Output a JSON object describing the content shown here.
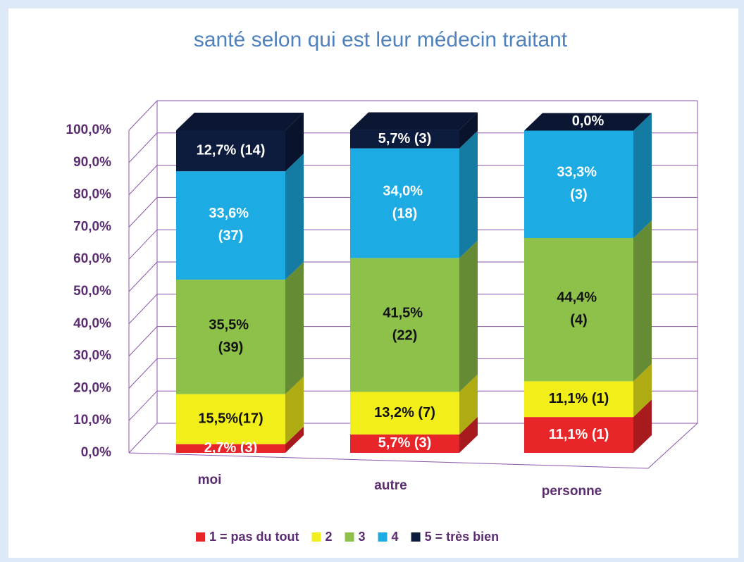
{
  "chart_data": {
    "type": "bar3d_stacked",
    "title": "santé selon qui est leur médecin traitant",
    "categories": [
      "moi",
      "autre",
      "personne"
    ],
    "ylim": [
      0,
      100
    ],
    "yticks": [
      {
        "value": 0,
        "label": "0,0%"
      },
      {
        "value": 10,
        "label": "10,0%"
      },
      {
        "value": 20,
        "label": "20,0%"
      },
      {
        "value": 30,
        "label": "30,0%"
      },
      {
        "value": 40,
        "label": "40,0%"
      },
      {
        "value": 50,
        "label": "50,0%"
      },
      {
        "value": 60,
        "label": "60,0%"
      },
      {
        "value": 70,
        "label": "70,0%"
      },
      {
        "value": 80,
        "label": "80,0%"
      },
      {
        "value": 90,
        "label": "90,0%"
      },
      {
        "value": 100,
        "label": "100,0%"
      }
    ],
    "grid": true,
    "legend": "bottom",
    "series": [
      {
        "name": "1 = pas du tout",
        "color": "#e8262a",
        "label_color": "#ffffff",
        "values": [
          2.7,
          5.7,
          11.1
        ],
        "value_labels": [
          "2,7% (3)",
          "5,7% (3)",
          "11,1% (1)"
        ]
      },
      {
        "name": "2",
        "color": "#f2ee1a",
        "label_color": "#111111",
        "values": [
          15.5,
          13.2,
          11.1
        ],
        "value_labels": [
          "15,5%(17)",
          "13,2% (7)",
          "11,1% (1)"
        ]
      },
      {
        "name": "3",
        "color": "#8dc14a",
        "label_color": "#111111",
        "values": [
          35.5,
          41.5,
          44.4
        ],
        "value_labels": [
          "35,5% (39)",
          "41,5% (22)",
          "44,4% (4)"
        ]
      },
      {
        "name": "4",
        "color": "#1cace3",
        "label_color": "#ffffff",
        "values": [
          33.6,
          34.0,
          33.3
        ],
        "value_labels": [
          "33,6% (37)",
          "34,0% (18)",
          "33,3% (3)"
        ]
      },
      {
        "name": "5 = très bien",
        "color": "#0d1b3d",
        "label_color": "#ffffff",
        "values": [
          12.7,
          5.7,
          0.0
        ],
        "value_labels": [
          "12,7% (14)",
          "5,7% (3)",
          "0,0%"
        ]
      }
    ]
  }
}
